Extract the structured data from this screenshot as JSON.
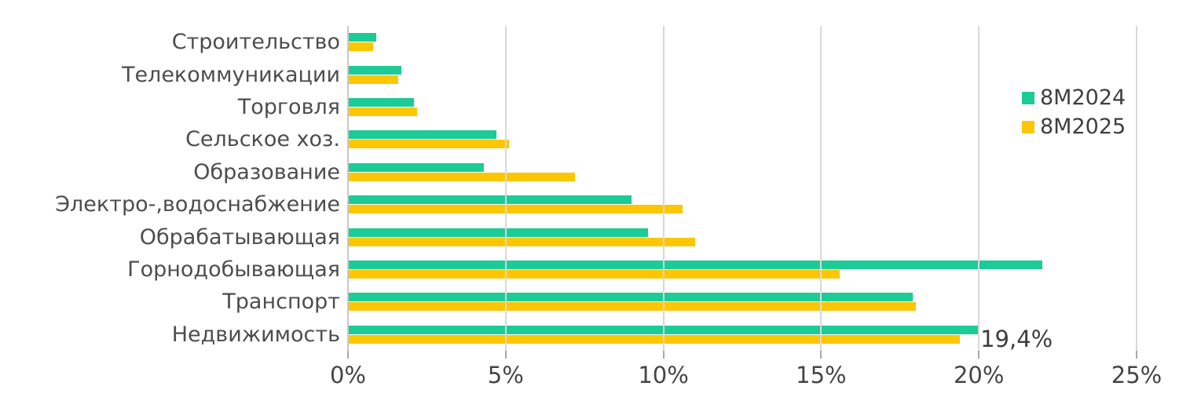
{
  "chart_data": {
    "type": "bar",
    "orientation": "horizontal",
    "title": "",
    "xlabel": "",
    "ylabel": "",
    "categories": [
      "Строительство",
      "Телекоммуникации",
      "Торговля",
      "Сельское хоз.",
      "Образование",
      "Электро-,водоснабжение",
      "Обрабатывающая",
      "Горнодобывающая",
      "Транспорт",
      "Недвижимость"
    ],
    "series": [
      {
        "name": "8М2024",
        "color": "#1ccb96",
        "values": [
          0.9,
          1.7,
          2.1,
          4.7,
          4.3,
          9.0,
          9.5,
          22.0,
          17.9,
          20.0
        ]
      },
      {
        "name": "8М2025",
        "color": "#fcc603",
        "values": [
          0.8,
          1.6,
          2.2,
          5.1,
          7.2,
          10.6,
          11.0,
          15.6,
          18.0,
          19.4
        ]
      }
    ],
    "value_unit": "%",
    "xlim": [
      0,
      25
    ],
    "x_ticks": [
      "0%",
      "5%",
      "10%",
      "15%",
      "20%",
      "25%"
    ],
    "x_tick_values": [
      0,
      5,
      10,
      15,
      20,
      25
    ],
    "grid": "vertical",
    "legend_position": "right",
    "annotations": [
      {
        "text": "19,4%",
        "series": "8М2025",
        "category": "Недвижимость",
        "value": 19.4
      }
    ]
  },
  "colors": {
    "background": "#ffffff",
    "gridline": "#d9d9d9",
    "axis_line": "#c8c8c8",
    "tick": "#a9a9a9",
    "label_text": "#4d4d4d",
    "axis_text": "#454545",
    "legend_text": "#3f3f3f",
    "annotation_text": "#3d3d3d"
  }
}
